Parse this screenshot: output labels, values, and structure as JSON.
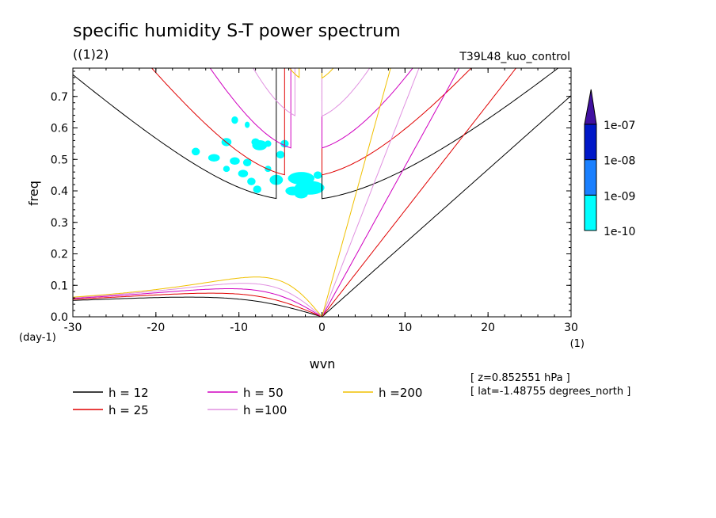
{
  "chart_data": {
    "type": "line",
    "title": "specific humidity S-T power spectrum",
    "subtitle_left": "((1)2)",
    "subtitle_right": "T39L48_kuo_control",
    "xlabel": "wvn",
    "ylabel": "freq",
    "x_unit_label": "(1)",
    "y_unit_label": "(day-1)",
    "xlim": [
      -30,
      30
    ],
    "ylim": [
      0,
      0.79
    ],
    "x_ticks": [
      -30,
      -20,
      -10,
      0,
      10,
      20,
      30
    ],
    "x_tick_labels": [
      "-30",
      "-20",
      "-10",
      "0",
      "10",
      "20",
      "30"
    ],
    "y_ticks": [
      0,
      0.1,
      0.2,
      0.3,
      0.4,
      0.5,
      0.6,
      0.7
    ],
    "y_tick_labels": [
      "0.0",
      "0.1",
      "0.2",
      "0.3",
      "0.4",
      "0.5",
      "0.6",
      "0.7"
    ],
    "grid": false,
    "dispersion_curves": [
      {
        "h": 12,
        "label": "h = 12",
        "color": "#000000"
      },
      {
        "h": 25,
        "label": "h = 25",
        "color": "#e00000"
      },
      {
        "h": 50,
        "label": "h = 50",
        "color": "#d000c0"
      },
      {
        "h": 100,
        "label": "h =100",
        "color": "#e090e0"
      },
      {
        "h": 200,
        "label": "h =200",
        "color": "#f0c000"
      }
    ],
    "colorbar": {
      "levels": [
        "1e-10",
        "1e-09",
        "1e-08",
        "1e-07"
      ],
      "colors": [
        "#00ffff",
        "#1a80ff",
        "#0018c8",
        "#4010a0"
      ],
      "extend": "max"
    },
    "shaded_regions_level": "1e-10",
    "shaded_regions": [
      {
        "k": -10.5,
        "f": 0.625,
        "dk": 0.4,
        "df": 0.012
      },
      {
        "k": -9.0,
        "f": 0.61,
        "dk": 0.3,
        "df": 0.01
      },
      {
        "k": -11.5,
        "f": 0.555,
        "dk": 0.6,
        "df": 0.013
      },
      {
        "k": -8.0,
        "f": 0.555,
        "dk": 0.5,
        "df": 0.012
      },
      {
        "k": -7.5,
        "f": 0.545,
        "dk": 0.9,
        "df": 0.016
      },
      {
        "k": -6.5,
        "f": 0.55,
        "dk": 0.4,
        "df": 0.01
      },
      {
        "k": -4.5,
        "f": 0.55,
        "dk": 0.5,
        "df": 0.012
      },
      {
        "k": -5.0,
        "f": 0.515,
        "dk": 0.5,
        "df": 0.012
      },
      {
        "k": -15.2,
        "f": 0.525,
        "dk": 0.5,
        "df": 0.012
      },
      {
        "k": -13.0,
        "f": 0.505,
        "dk": 0.7,
        "df": 0.012
      },
      {
        "k": -10.5,
        "f": 0.495,
        "dk": 0.6,
        "df": 0.012
      },
      {
        "k": -9.0,
        "f": 0.49,
        "dk": 0.5,
        "df": 0.012
      },
      {
        "k": -11.5,
        "f": 0.47,
        "dk": 0.4,
        "df": 0.01
      },
      {
        "k": -9.5,
        "f": 0.455,
        "dk": 0.6,
        "df": 0.012
      },
      {
        "k": -6.5,
        "f": 0.47,
        "dk": 0.4,
        "df": 0.01
      },
      {
        "k": -8.5,
        "f": 0.43,
        "dk": 0.5,
        "df": 0.012
      },
      {
        "k": -7.8,
        "f": 0.405,
        "dk": 0.5,
        "df": 0.012
      },
      {
        "k": -5.5,
        "f": 0.435,
        "dk": 0.8,
        "df": 0.016
      },
      {
        "k": -2.5,
        "f": 0.44,
        "dk": 1.6,
        "df": 0.02
      },
      {
        "k": -1.5,
        "f": 0.41,
        "dk": 1.8,
        "df": 0.022
      },
      {
        "k": -3.5,
        "f": 0.4,
        "dk": 0.9,
        "df": 0.014
      },
      {
        "k": -2.5,
        "f": 0.39,
        "dk": 0.8,
        "df": 0.014
      },
      {
        "k": -0.5,
        "f": 0.45,
        "dk": 0.5,
        "df": 0.012
      }
    ]
  },
  "annotations": {
    "z_text": "[ z=0.852551 hPa ]",
    "lat_text": "[ lat=-1.48755 degrees_north ]"
  }
}
